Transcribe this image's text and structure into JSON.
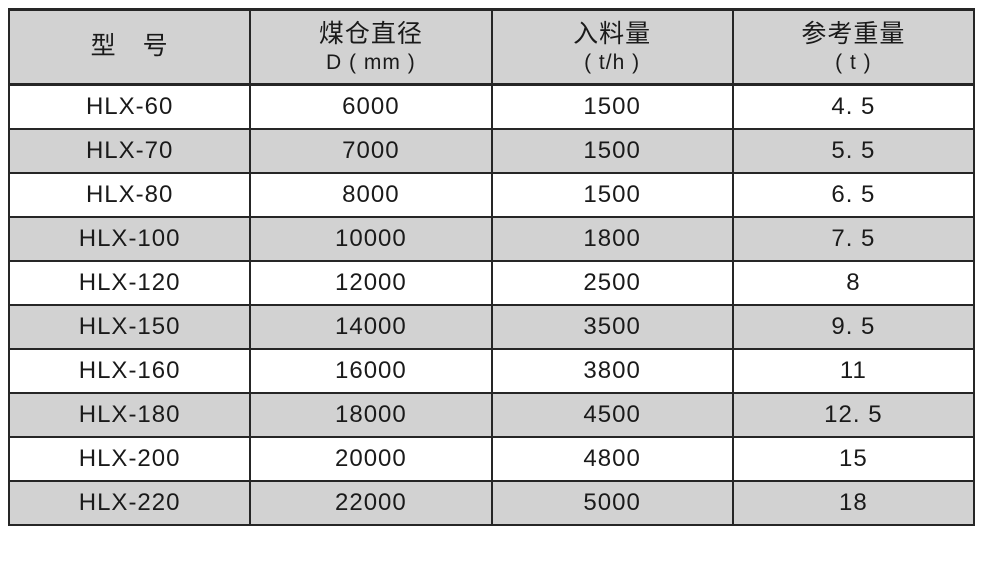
{
  "table": {
    "columns": [
      {
        "line1": "型　号",
        "line2": ""
      },
      {
        "line1": "煤仓直径",
        "line2": "D ( mm )"
      },
      {
        "line1": "入料量",
        "line2": "( t/h )"
      },
      {
        "line1": "参考重量",
        "line2": "( t )"
      }
    ],
    "rows": [
      [
        "HLX-60",
        "6000",
        "1500",
        "4. 5"
      ],
      [
        "HLX-70",
        "7000",
        "1500",
        "5. 5"
      ],
      [
        "HLX-80",
        "8000",
        "1500",
        "6. 5"
      ],
      [
        "HLX-100",
        "10000",
        "1800",
        "7. 5"
      ],
      [
        "HLX-120",
        "12000",
        "2500",
        "8"
      ],
      [
        "HLX-150",
        "14000",
        "3500",
        "9. 5"
      ],
      [
        "HLX-160",
        "16000",
        "3800",
        "11"
      ],
      [
        "HLX-180",
        "18000",
        "4500",
        "12. 5"
      ],
      [
        "HLX-200",
        "20000",
        "4800",
        "15"
      ],
      [
        "HLX-220",
        "22000",
        "5000",
        "18"
      ]
    ],
    "colors": {
      "header_bg": "#d2d2d2",
      "row_alt_bg": "#d2d2d2",
      "row_bg": "#ffffff",
      "border": "#262626",
      "text": "#1a1a1a"
    }
  }
}
